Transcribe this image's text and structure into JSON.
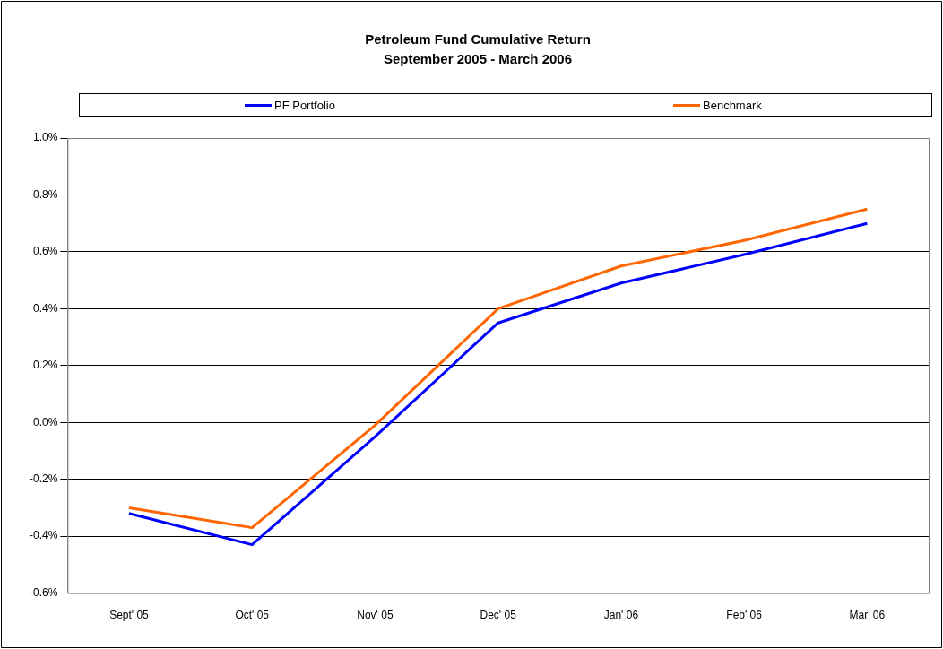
{
  "chart_data": {
    "type": "line",
    "title": "Petroleum Fund Cumulative Return",
    "subtitle": "September 2005 - March 2006",
    "categories": [
      "Sept' 05",
      "Oct' 05",
      "Nov' 05",
      "Dec' 05",
      "Jan' 06",
      "Feb' 06",
      "Mar' 06"
    ],
    "series": [
      {
        "name": "PF Portfolio",
        "color": "#0000ff",
        "values": [
          -0.32,
          -0.43,
          -0.05,
          0.35,
          0.49,
          0.59,
          0.7
        ]
      },
      {
        "name": "Benchmark",
        "color": "#ff6600",
        "values": [
          -0.3,
          -0.37,
          -0.01,
          0.4,
          0.55,
          0.64,
          0.75
        ]
      }
    ],
    "ylim": [
      -0.6,
      1.0
    ],
    "yticks": [
      {
        "value": -0.6,
        "label": "-0.6%"
      },
      {
        "value": -0.4,
        "label": "-0.4%"
      },
      {
        "value": -0.2,
        "label": "-0.2%"
      },
      {
        "value": 0,
        "label": "0.0%"
      },
      {
        "value": 0.2,
        "label": "0.2%"
      },
      {
        "value": 0.4,
        "label": "0.4%"
      },
      {
        "value": 0.6,
        "label": "0.6%"
      },
      {
        "value": 0.8,
        "label": "0.8%"
      },
      {
        "value": 1.0,
        "label": "1.0%"
      }
    ],
    "grid": "y",
    "legend": "top",
    "marker": "none",
    "line_style": "solid"
  }
}
